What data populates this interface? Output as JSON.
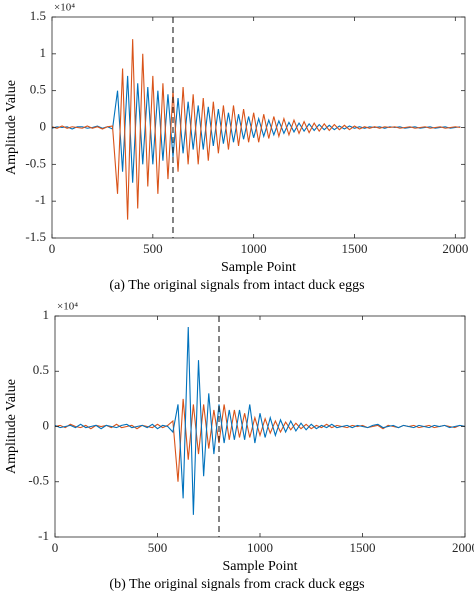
{
  "chart_data": [
    {
      "type": "line",
      "xlabel": "Sample Point",
      "ylabel": "Amplitude Value",
      "exponent_label": "×10⁴",
      "caption": "(a) The original signals from intact duck eggs",
      "xlim": [
        0,
        2048
      ],
      "xticks": [
        0,
        500,
        1000,
        1500,
        2000
      ],
      "ylim": [
        -1.5,
        1.5
      ],
      "yticks": [
        -1.5,
        -1,
        -0.5,
        0,
        0.5,
        1,
        1.5
      ],
      "vline": 600,
      "x": [
        0,
        25,
        50,
        75,
        100,
        125,
        150,
        175,
        200,
        225,
        250,
        275,
        300,
        325,
        350,
        375,
        400,
        425,
        450,
        475,
        500,
        525,
        550,
        575,
        600,
        625,
        650,
        675,
        700,
        725,
        750,
        775,
        800,
        825,
        850,
        875,
        900,
        925,
        950,
        975,
        1000,
        1025,
        1050,
        1075,
        1100,
        1125,
        1150,
        1175,
        1200,
        1225,
        1250,
        1275,
        1300,
        1325,
        1350,
        1375,
        1400,
        1425,
        1450,
        1475,
        1500,
        1525,
        1550,
        1575,
        1600,
        1625,
        1650,
        1675,
        1700,
        1725,
        1750,
        1775,
        1800,
        1825,
        1850,
        1875,
        1900,
        1925,
        1950,
        1975,
        2000,
        2025
      ],
      "series": [
        {
          "color": "#0072bd",
          "values": [
            -0.01,
            0.01,
            0,
            0.01,
            -0.02,
            0.01,
            0.01,
            -0.01,
            0,
            0.02,
            -0.01,
            0.01,
            -0.02,
            0.5,
            -0.6,
            0.7,
            -0.75,
            0.6,
            -0.5,
            0.55,
            -0.5,
            0.5,
            -0.45,
            0.45,
            -0.4,
            0.4,
            -0.35,
            0.35,
            -0.3,
            0.3,
            -0.3,
            0.28,
            -0.25,
            0.25,
            -0.22,
            0.2,
            -0.2,
            0.18,
            -0.16,
            0.15,
            -0.14,
            0.12,
            -0.12,
            0.1,
            -0.1,
            0.09,
            -0.08,
            0.07,
            -0.06,
            0.06,
            -0.05,
            0.05,
            -0.04,
            0.04,
            -0.03,
            0.03,
            -0.03,
            0.02,
            -0.02,
            0.02,
            -0.01,
            0.01,
            -0.01,
            0.01,
            0,
            0.01,
            -0.01,
            0.01,
            0,
            0.01,
            -0.01,
            0,
            0.01,
            -0.01,
            0,
            0.01,
            -0.01,
            0,
            0.01,
            -0.01,
            0,
            0.01
          ]
        },
        {
          "color": "#d95319",
          "values": [
            0.01,
            -0.01,
            0.02,
            -0.01,
            0.01,
            0,
            -0.01,
            0.02,
            -0.01,
            0.01,
            -0.02,
            0.01,
            0.02,
            -0.9,
            0.8,
            -1.25,
            1.2,
            -1.1,
            1.0,
            -0.8,
            0.7,
            -0.9,
            0.6,
            -0.7,
            0.5,
            -0.6,
            0.55,
            -0.5,
            0.45,
            -0.5,
            0.4,
            -0.45,
            0.35,
            -0.35,
            0.3,
            -0.3,
            0.3,
            -0.25,
            0.25,
            -0.2,
            0.2,
            -0.2,
            0.18,
            -0.15,
            0.15,
            -0.12,
            0.12,
            -0.1,
            0.1,
            -0.08,
            0.08,
            -0.07,
            0.06,
            -0.05,
            0.05,
            -0.04,
            0.04,
            -0.03,
            0.03,
            -0.03,
            0.02,
            -0.02,
            0.01,
            -0.01,
            0.01,
            -0.01,
            0.01,
            0,
            0.01,
            -0.01,
            0,
            0.01,
            -0.01,
            0,
            0.01,
            -0.01,
            0,
            0.01,
            -0.01,
            0,
            0.01,
            0
          ]
        }
      ]
    },
    {
      "type": "line",
      "xlabel": "Sample Point",
      "ylabel": "Amplitude Value",
      "exponent_label": "×10⁴",
      "caption": "(b) The original signals from crack duck eggs",
      "xlim": [
        0,
        2000
      ],
      "xticks": [
        0,
        500,
        1000,
        1500,
        2000
      ],
      "ylim": [
        -1,
        1
      ],
      "yticks": [
        -1,
        -0.5,
        0,
        0.5,
        1
      ],
      "vline": 800,
      "x": [
        0,
        25,
        50,
        75,
        100,
        125,
        150,
        175,
        200,
        225,
        250,
        275,
        300,
        325,
        350,
        375,
        400,
        425,
        450,
        475,
        500,
        525,
        550,
        575,
        600,
        625,
        650,
        675,
        700,
        725,
        750,
        775,
        800,
        825,
        850,
        875,
        900,
        925,
        950,
        975,
        1000,
        1025,
        1050,
        1075,
        1100,
        1125,
        1150,
        1175,
        1200,
        1225,
        1250,
        1275,
        1300,
        1325,
        1350,
        1375,
        1400,
        1425,
        1450,
        1475,
        1500,
        1525,
        1550,
        1575,
        1600,
        1625,
        1650,
        1675,
        1700,
        1725,
        1750,
        1775,
        1800,
        1825,
        1850,
        1875,
        1900,
        1925,
        1950,
        1975,
        2000
      ],
      "series": [
        {
          "color": "#d95319",
          "values": [
            0,
            0.01,
            -0.01,
            0.02,
            0,
            -0.01,
            0.01,
            -0.02,
            0.01,
            0,
            0.01,
            -0.01,
            0.02,
            -0.01,
            0,
            0.01,
            -0.02,
            0.01,
            0,
            -0.01,
            0.02,
            -0.01,
            0.01,
            0.05,
            -0.5,
            0.25,
            -0.3,
            0.2,
            -0.25,
            0.2,
            -0.2,
            0.15,
            -0.15,
            0.2,
            -0.12,
            0.15,
            -0.1,
            0.12,
            -0.1,
            0.08,
            -0.08,
            0.07,
            -0.06,
            0.05,
            -0.05,
            0.04,
            -0.03,
            0.03,
            -0.02,
            0.02,
            -0.02,
            0.01,
            -0.01,
            0.02,
            -0.01,
            0.01,
            0,
            -0.01,
            0.01,
            0,
            0.01,
            -0.01,
            0,
            0.01,
            -0.02,
            0.01,
            0,
            -0.01,
            0.01,
            0,
            0.01,
            -0.01,
            0,
            0.01,
            -0.01,
            0,
            0.01,
            0,
            -0.01,
            0.01,
            0
          ]
        },
        {
          "color": "#0072bd",
          "values": [
            0.01,
            -0.01,
            0,
            0.01,
            -0.01,
            0.02,
            -0.01,
            0,
            0.01,
            -0.02,
            0.01,
            0,
            -0.01,
            0.01,
            0.02,
            -0.01,
            0,
            0.01,
            -0.01,
            0.02,
            -0.02,
            0.01,
            0,
            -0.05,
            0.2,
            -0.65,
            0.9,
            -0.8,
            0.6,
            -0.45,
            0.3,
            -0.25,
            0.2,
            -0.15,
            0.15,
            -0.12,
            0.15,
            -0.12,
            0.2,
            -0.15,
            0.12,
            -0.1,
            0.08,
            -0.08,
            0.06,
            -0.05,
            0.05,
            -0.04,
            0.03,
            -0.03,
            0.02,
            -0.02,
            0.01,
            -0.01,
            0.02,
            -0.01,
            0,
            0.01,
            -0.01,
            0.01,
            0,
            -0.01,
            0.01,
            0.02,
            -0.01,
            0,
            0.01,
            -0.01,
            0.01,
            0,
            -0.01,
            0.01,
            0,
            -0.01,
            0.01,
            0,
            0.01,
            -0.01,
            0,
            0.01,
            0
          ]
        }
      ]
    }
  ]
}
